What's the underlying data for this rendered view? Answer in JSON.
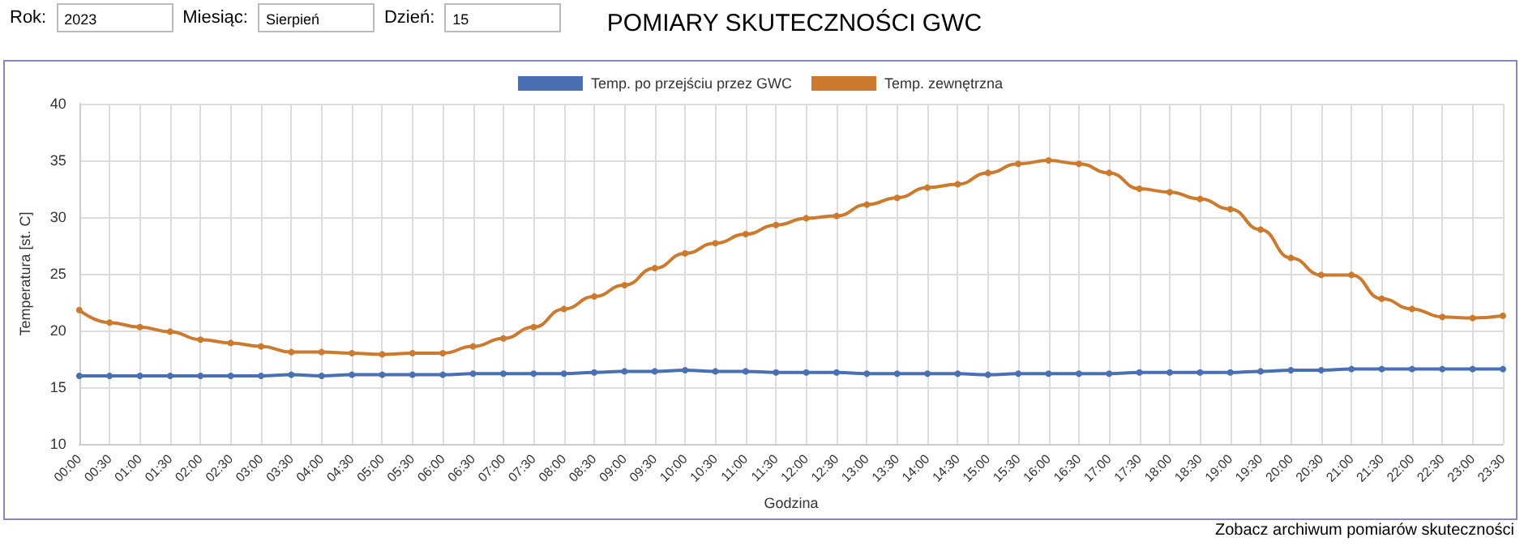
{
  "chart_data": {
    "type": "line",
    "title": "POMIARY SKUTECZNOŚCI GWC",
    "xlabel": "Godzina",
    "ylabel": "Temperatura [st. C]",
    "annotations": [
      "Rok:",
      "2023",
      "Miesiąc:",
      "Sierpień",
      "Dzień:",
      "15",
      "Zobacz archiwum pomiarów skuteczności"
    ],
    "categories": [
      "00:00",
      "00:30",
      "01:00",
      "01:30",
      "02:00",
      "02:30",
      "03:00",
      "03:30",
      "04:00",
      "04:30",
      "05:00",
      "05:30",
      "06:00",
      "06:30",
      "07:00",
      "07:30",
      "08:00",
      "08:30",
      "09:00",
      "09:30",
      "10:00",
      "10:30",
      "11:00",
      "11:30",
      "12:00",
      "12:30",
      "13:00",
      "13:30",
      "14:00",
      "14:30",
      "15:00",
      "15:30",
      "16:00",
      "16:30",
      "17:00",
      "17:30",
      "18:00",
      "18:30",
      "19:00",
      "19:30",
      "20:00",
      "20:30",
      "21:00",
      "21:30",
      "22:00",
      "22:30",
      "23:00",
      "23:30"
    ],
    "series": [
      {
        "name": "Temp. po przejściu przez GWC",
        "color": "#4a6fb3",
        "values": [
          16.0,
          16.0,
          16.0,
          16.0,
          16.0,
          16.0,
          16.0,
          16.1,
          16.0,
          16.1,
          16.1,
          16.1,
          16.1,
          16.2,
          16.2,
          16.2,
          16.2,
          16.3,
          16.4,
          16.4,
          16.5,
          16.4,
          16.4,
          16.3,
          16.3,
          16.3,
          16.2,
          16.2,
          16.2,
          16.2,
          16.1,
          16.2,
          16.2,
          16.2,
          16.2,
          16.3,
          16.3,
          16.3,
          16.3,
          16.4,
          16.5,
          16.5,
          16.6,
          16.6,
          16.6,
          16.6,
          16.6,
          16.6
        ]
      },
      {
        "name": "Temp. zewnętrzna",
        "color": "#cc7a2e",
        "values": [
          21.8,
          20.7,
          20.3,
          19.9,
          19.2,
          18.9,
          18.6,
          18.1,
          18.1,
          18.0,
          17.9,
          18.0,
          18.0,
          18.6,
          19.3,
          20.3,
          21.9,
          23.0,
          24.0,
          25.5,
          26.8,
          27.7,
          28.5,
          29.3,
          29.9,
          30.1,
          31.1,
          31.7,
          32.6,
          32.9,
          33.9,
          34.7,
          35.0,
          34.7,
          33.9,
          32.5,
          32.2,
          31.6,
          30.7,
          28.9,
          26.4,
          24.9,
          24.9,
          22.8,
          21.9,
          21.2,
          21.1,
          21.3
        ]
      }
    ],
    "ylim": [
      10,
      40
    ],
    "yticks": [
      10,
      15,
      20,
      25,
      30,
      35,
      40
    ],
    "grid": true,
    "legend": "top",
    "marker": "circle",
    "line_style": "solid"
  }
}
